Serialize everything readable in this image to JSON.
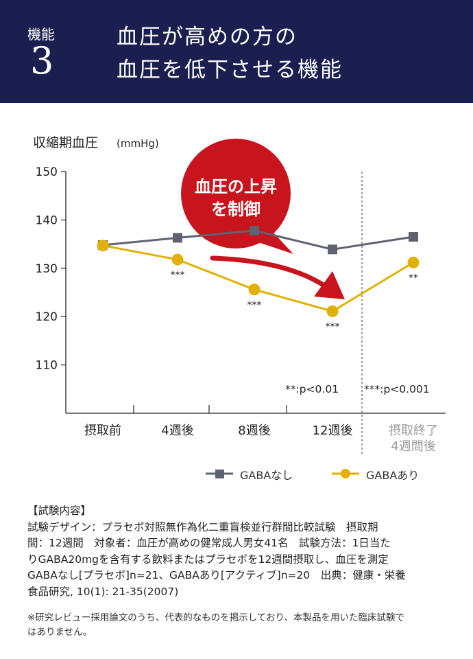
{
  "header": {
    "label": "機能",
    "number": "3",
    "title_line1": "血圧が高めの方の",
    "title_line2": "血圧を低下させる機能"
  },
  "chart_data": {
    "type": "line",
    "ylabel": "収縮期血圧",
    "ylabel_unit": "(mmHg)",
    "ylim": [
      100,
      150
    ],
    "yticks": [
      110,
      120,
      130,
      140,
      150
    ],
    "categories": [
      "摂取前",
      "4週後",
      "8週後",
      "12週後",
      "摂取終了\n4週間後"
    ],
    "series": [
      {
        "name": "GABAなし",
        "values": [
          134.8,
          136.3,
          137.8,
          133.9,
          136.5
        ],
        "color": "#5f6270",
        "marker": "square"
      },
      {
        "name": "GABAあり",
        "values": [
          134.7,
          131.8,
          125.6,
          121.1,
          131.2
        ],
        "color": "#e0b100",
        "marker": "circle"
      }
    ],
    "significance": [
      {
        "category": "4週後",
        "label": "***"
      },
      {
        "category": "8週後",
        "label": "***"
      },
      {
        "category": "12週後",
        "label": "***"
      },
      {
        "category": "摂取終了\n4週間後",
        "label": "**"
      }
    ],
    "sig_legend_1": "**:p<0.01",
    "sig_legend_2": "***:p<0.001",
    "callout_line1": "血圧の上昇",
    "callout_line2": "を制御",
    "callout_color": "#c8151d",
    "divider_after_category": "12週後"
  },
  "notes": {
    "heading": "【試験内容】",
    "line1": "試験デザイン：プラセボ対照無作為化二重盲検並行群間比較試験　摂取期",
    "line2": "間：12週間　対象者：血圧が高めの健常成人男女41名　試験方法：1日当た",
    "line3": "りGABA20mgを含有する飲料またはプラセボを12週間摂取し、血圧を測定",
    "line4": "GABAなし[プラセボ]n=21、GABAあり[アクティブ]n=20　出典：健康・栄養",
    "line5": "食品研究, 10(1): 21-35(2007)"
  },
  "footnote": {
    "line1": "※研究レビュー採用論文のうち、代表的なものを掲示しており、本製品を用いた臨床試験で",
    "line2": "はありません。"
  }
}
